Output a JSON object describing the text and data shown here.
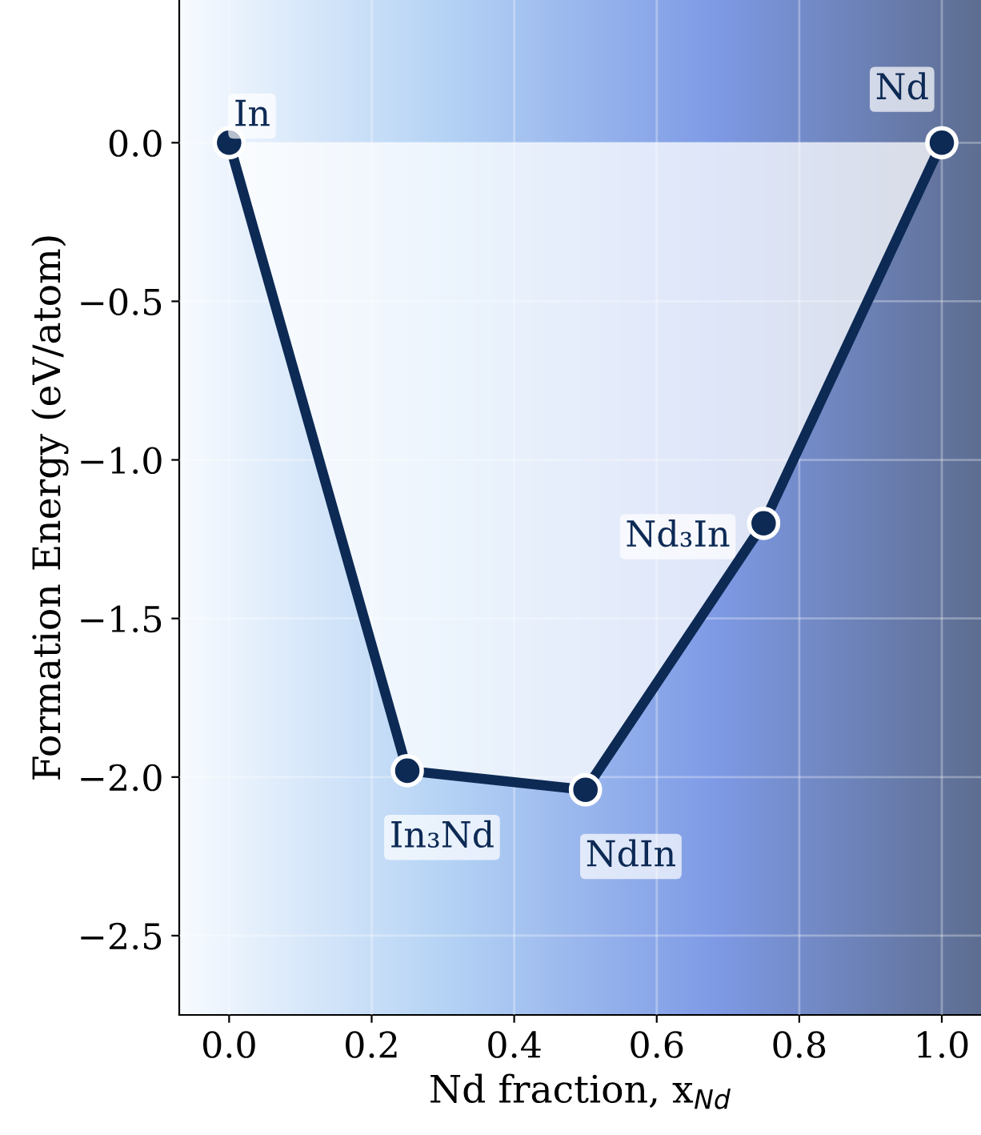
{
  "chart_data": {
    "type": "area",
    "xlabel": "Nd fraction, x$_{Nd}$",
    "ylabel": "Formation Energy (eV/atom)",
    "x": [
      0.0,
      0.25,
      0.5,
      0.75,
      1.0
    ],
    "series": [
      {
        "color": "#0d2a55",
        "values": [
          0.0,
          -1.98,
          -2.04,
          -1.2,
          0.0
        ]
      }
    ],
    "marker": "circle",
    "line_style": "solid",
    "grid": true,
    "xlim": [
      -0.07,
      1.055
    ],
    "ylim": [
      -2.75,
      0.45
    ],
    "xticks": [
      {
        "value": 0.0,
        "label": "0.0"
      },
      0.2,
      0.4,
      0.6,
      0.8,
      {
        "value": 1.0,
        "label": "1.0"
      }
    ],
    "yticks": [
      {
        "value": -2.5,
        "label": "−2.5"
      },
      {
        "value": -2.0,
        "label": "−2.0"
      },
      {
        "value": -1.5,
        "label": "−1.5"
      },
      {
        "value": -1.0,
        "label": "−1.0"
      },
      {
        "value": -0.5,
        "label": "−0.5"
      },
      {
        "value": 0.0,
        "label": "0.0"
      }
    ],
    "annotations": [
      {
        "text": "In",
        "x": 0.0,
        "y": 0.0
      },
      {
        "text": "In₃Nd",
        "x": 0.25,
        "y": -1.98
      },
      {
        "text": "NdIn",
        "x": 0.5,
        "y": -2.04
      },
      {
        "text": "Nd₃In",
        "x": 0.75,
        "y": -1.2
      },
      {
        "text": "Nd",
        "x": 1.0,
        "y": 0.0
      }
    ]
  }
}
